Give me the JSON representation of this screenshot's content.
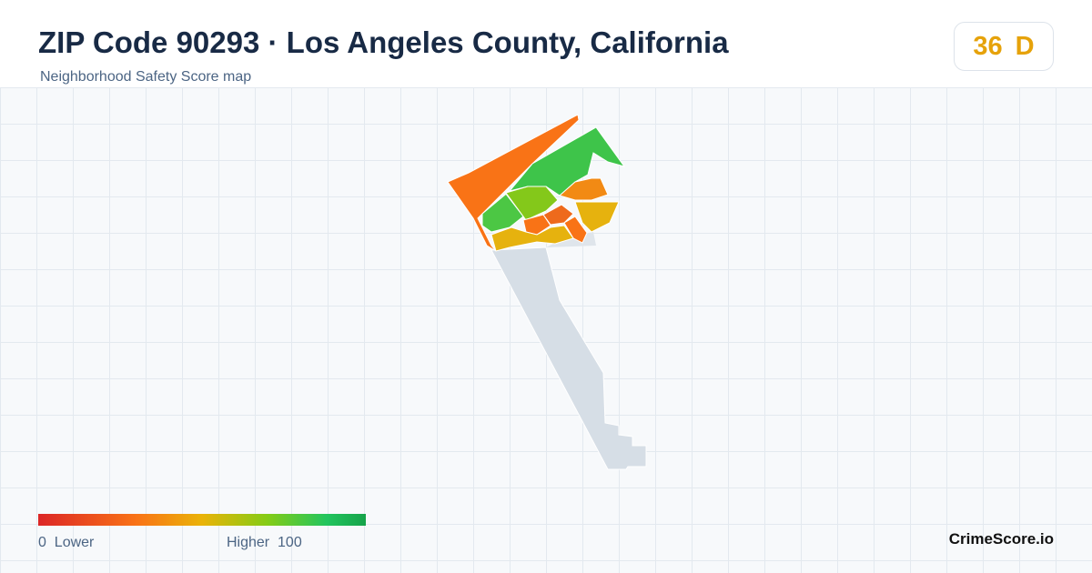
{
  "header": {
    "title": "ZIP Code 90293 · Los Angeles County, California",
    "subtitle": "Neighborhood Safety Score map"
  },
  "score": {
    "value": "36",
    "grade": "D"
  },
  "legend": {
    "min": "0",
    "min_label": "Lower",
    "max_label": "Higher",
    "max": "100"
  },
  "brand": "CrimeScore.io"
}
